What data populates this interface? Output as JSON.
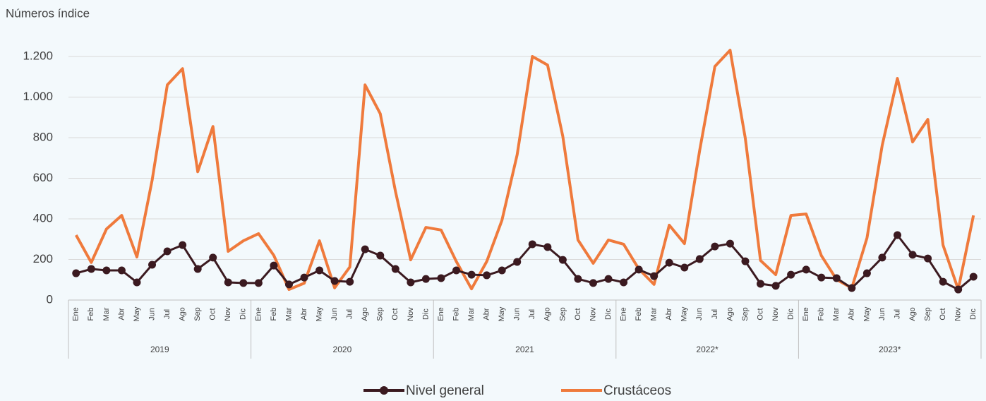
{
  "chart_data": {
    "type": "line",
    "y_axis_label": "Números índice",
    "categories": [
      "Ene",
      "Feb",
      "Mar",
      "Abr",
      "May",
      "Jun",
      "Jul",
      "Ago",
      "Sep",
      "Oct",
      "Nov",
      "Dic",
      "Ene",
      "Feb",
      "Mar",
      "Abr",
      "May",
      "Jun",
      "Jul",
      "Ago",
      "Sep",
      "Oct",
      "Nov",
      "Dic",
      "Ene",
      "Feb",
      "Mar",
      "Abr",
      "May",
      "Jun",
      "Jul",
      "Ago",
      "Sep",
      "Oct",
      "Nov",
      "Dic",
      "Ene",
      "Feb",
      "Mar",
      "Abr",
      "May",
      "Jun",
      "Jul",
      "Ago",
      "Sep",
      "Oct",
      "Nov",
      "Dic",
      "Ene",
      "Feb",
      "Mar",
      "Abr",
      "May",
      "Jun",
      "Jul",
      "Ago",
      "Sep",
      "Oct",
      "Nov",
      "Dic"
    ],
    "groups": [
      "2019",
      "2020",
      "2021",
      "2022*",
      "2023*"
    ],
    "series": [
      {
        "name": "Nivel general",
        "color": "#3b1a20",
        "marker": true,
        "values": [
          132,
          153,
          146,
          146,
          87,
          174,
          240,
          271,
          153,
          209,
          87,
          84,
          84,
          170,
          77,
          111,
          146,
          94,
          90,
          250,
          219,
          153,
          87,
          104,
          108,
          146,
          125,
          122,
          146,
          188,
          275,
          261,
          198,
          104,
          84,
          104,
          87,
          150,
          118,
          184,
          160,
          202,
          264,
          278,
          191,
          80,
          70,
          125,
          150,
          111,
          108,
          59,
          132,
          209,
          320,
          223,
          205,
          90,
          52,
          115
        ]
      },
      {
        "name": "Crustáceos",
        "color": "#ef7a3c",
        "marker": false,
        "values": [
          320,
          185,
          350,
          417,
          212,
          590,
          1060,
          1140,
          632,
          855,
          240,
          292,
          327,
          220,
          52,
          83,
          292,
          60,
          163,
          1060,
          918,
          535,
          198,
          358,
          345,
          190,
          55,
          190,
          393,
          716,
          1200,
          1158,
          807,
          296,
          181,
          296,
          275,
          153,
          77,
          369,
          278,
          737,
          1151,
          1231,
          797,
          195,
          125,
          417,
          424,
          219,
          101,
          59,
          306,
          762,
          1092,
          779,
          890,
          271,
          52,
          417
        ]
      }
    ],
    "ylim": [
      0,
      1200
    ],
    "yticks": [
      0,
      200,
      400,
      600,
      800,
      {
        "value": 1000,
        "label": "1.000"
      },
      {
        "value": 1200,
        "label": "1.200"
      }
    ],
    "grid": true,
    "legend": "bottom"
  }
}
